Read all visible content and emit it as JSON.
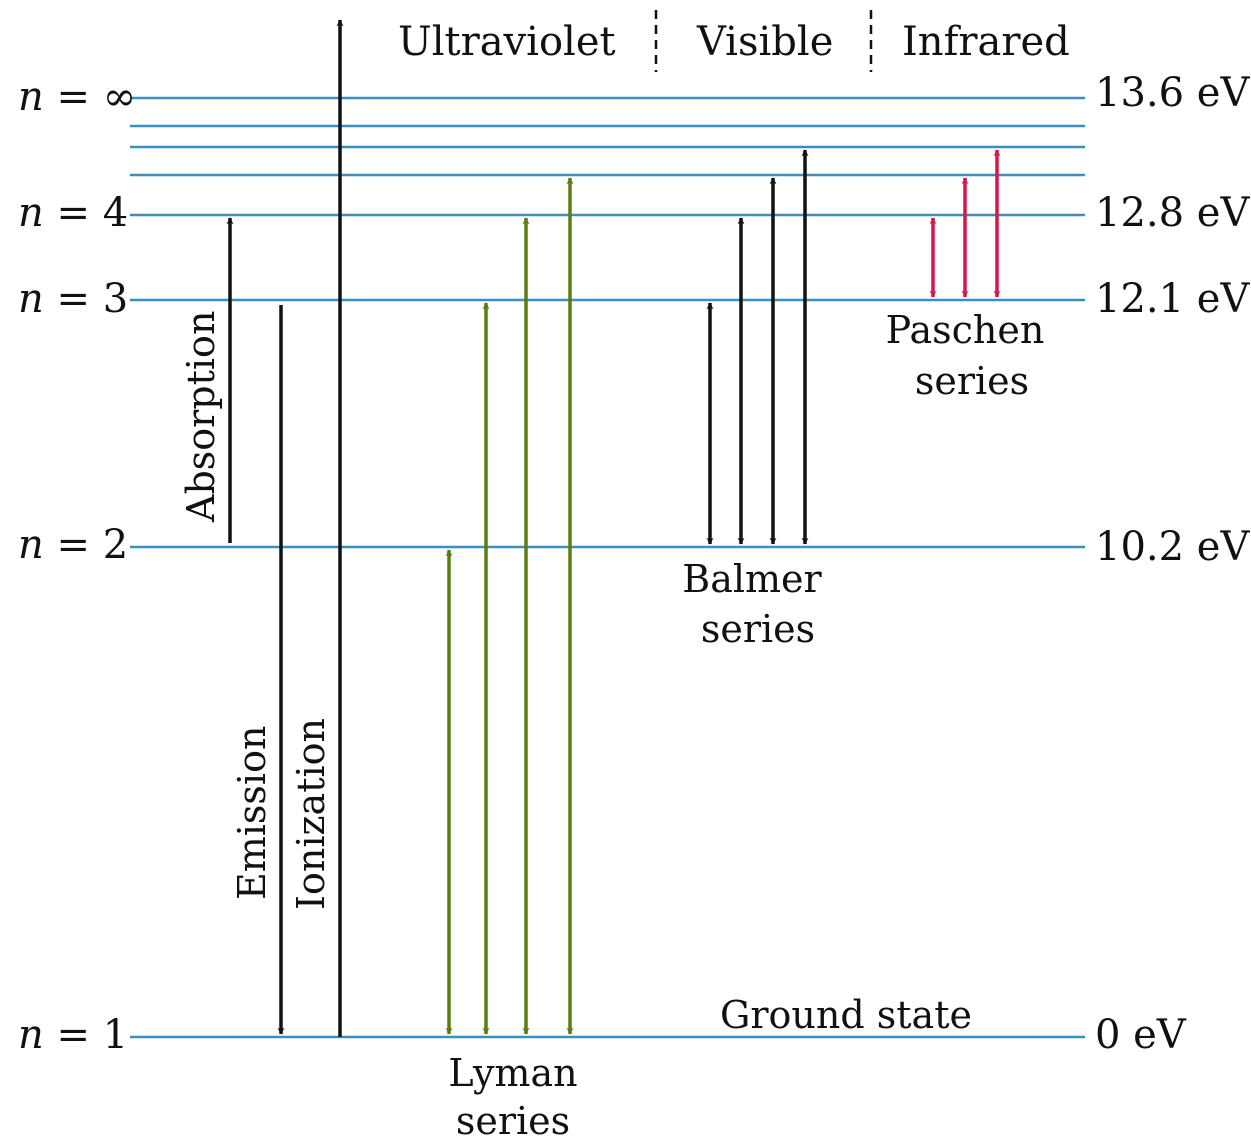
{
  "colors": {
    "level_line": "#3a8fc2",
    "black_arrow": "#111111",
    "lyman": "#5a7d12",
    "paschen": "#d2184a",
    "divider": "#111111"
  },
  "regions": [
    {
      "label": "Ultraviolet"
    },
    {
      "label": "Visible"
    },
    {
      "label": "Infrared"
    }
  ],
  "levels": [
    {
      "n": "∞",
      "energy": "13.6 eV"
    },
    {
      "n": "",
      "energy": ""
    },
    {
      "n": "",
      "energy": ""
    },
    {
      "n": "",
      "energy": ""
    },
    {
      "n": "4",
      "energy": "12.8 eV"
    },
    {
      "n": "3",
      "energy": "12.1 eV"
    },
    {
      "n": "2",
      "energy": "10.2 eV"
    },
    {
      "n": "1",
      "energy": "0 eV"
    }
  ],
  "level_prefix_var": "n",
  "level_prefix_eq": " = ",
  "labels": {
    "absorption": "Absorption",
    "emission": "Emission",
    "ionization": "Ionization",
    "ground_state": "Ground state",
    "lyman_1": "Lyman",
    "lyman_2": "series",
    "balmer_1": "Balmer",
    "balmer_2": "series",
    "paschen_1": "Paschen",
    "paschen_2": "series"
  }
}
